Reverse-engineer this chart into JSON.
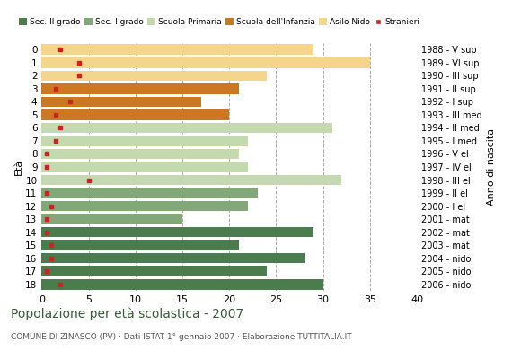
{
  "ages": [
    18,
    17,
    16,
    15,
    14,
    13,
    12,
    11,
    10,
    9,
    8,
    7,
    6,
    5,
    4,
    3,
    2,
    1,
    0
  ],
  "years": [
    "1988 - V sup",
    "1989 - VI sup",
    "1990 - III sup",
    "1991 - II sup",
    "1992 - I sup",
    "1993 - III med",
    "1994 - II med",
    "1995 - I med",
    "1996 - V el",
    "1997 - IV el",
    "1998 - III el",
    "1999 - II el",
    "2000 - I el",
    "2001 - mat",
    "2002 - mat",
    "2003 - mat",
    "2004 - nido",
    "2005 - nido",
    "2006 - nido"
  ],
  "values": [
    30,
    24,
    28,
    21,
    29,
    15,
    22,
    23,
    32,
    22,
    21,
    22,
    31,
    20,
    17,
    21,
    24,
    35,
    29
  ],
  "stranieri": [
    2,
    0.5,
    1,
    1,
    0.5,
    0.5,
    1,
    0.5,
    5,
    0.5,
    0.5,
    1.5,
    2,
    1.5,
    3,
    1.5,
    4,
    4,
    2
  ],
  "categories": [
    "Sec. II grado",
    "Sec. I grado",
    "Scuola Primaria",
    "Scuola dell'Infanzia",
    "Asilo Nido"
  ],
  "colors": [
    "#4a7c4e",
    "#82a87a",
    "#c5d9b0",
    "#cc7722",
    "#f5d58c"
  ],
  "stranieri_color": "#cc2222",
  "title": "Popolazione per età scolastica - 2007",
  "subtitle": "COMUNE DI ZINASCO (PV) · Dati ISTAT 1° gennaio 2007 · Elaborazione TUTTITALIA.IT",
  "ylabel": "Età",
  "ylabel2": "Anno di nascita",
  "xlabel_ticks": [
    0,
    5,
    10,
    15,
    20,
    25,
    30,
    35,
    40
  ],
  "xlim": [
    0,
    40
  ],
  "bar_height": 0.8,
  "age_to_category": {
    "18": 0,
    "17": 0,
    "16": 0,
    "15": 0,
    "14": 0,
    "13": 1,
    "12": 1,
    "11": 1,
    "10": 2,
    "9": 2,
    "8": 2,
    "7": 2,
    "6": 2,
    "5": 3,
    "4": 3,
    "3": 3,
    "2": 4,
    "1": 4,
    "0": 4
  }
}
